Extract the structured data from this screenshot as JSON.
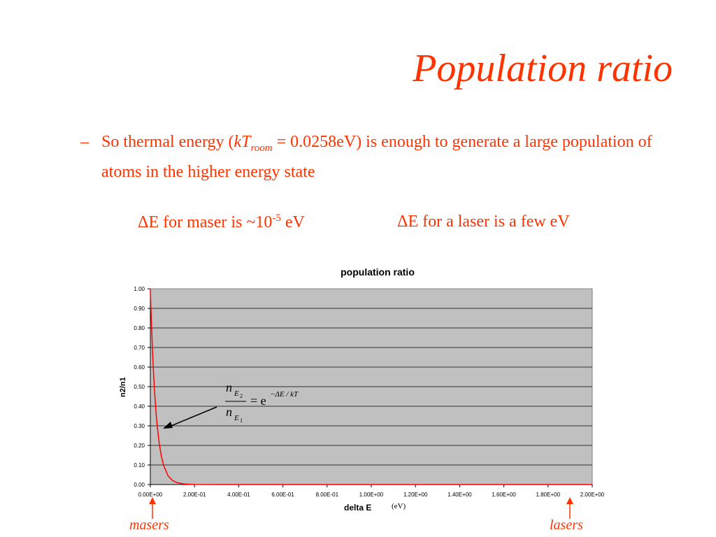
{
  "slide": {
    "title": "Population ratio",
    "bullet": {
      "dash": "–",
      "pre": "So thermal energy (",
      "kt_k": "kT",
      "kt_sub": "room",
      "kt_eq": " = 0.0258eV) is enough to generate a large population of atoms in the higher energy state"
    },
    "maser": {
      "delta": "Δ",
      "pre": "E for maser is ~10",
      "exp": "-5",
      "post": " eV"
    },
    "laser": {
      "delta": "Δ",
      "text": "E for a laser is a few eV"
    },
    "markers": {
      "left": "masers",
      "right": "lasers"
    },
    "xunit": "(eV)",
    "formula": {
      "num_n": "n",
      "num_sub": "E",
      "num_subsub": "2",
      "eq": "= e",
      "exp": "−ΔE / kT",
      "den_n": "n",
      "den_sub": "E",
      "den_subsub": "1"
    }
  },
  "colors": {
    "accent": "#ff3300",
    "plot_bg": "#c0c0c0",
    "curve": "#ff0000"
  },
  "chart_data": {
    "type": "line",
    "title": "population ratio",
    "xlabel": "delta E",
    "ylabel": "n2/n1",
    "xlim": [
      0,
      2.0
    ],
    "ylim": [
      0,
      1.0
    ],
    "x_ticks": [
      "0.00E+00",
      "2.00E-01",
      "4.00E-01",
      "6.00E-01",
      "8.00E-01",
      "1.00E+00",
      "1.20E+00",
      "1.40E+00",
      "1.60E+00",
      "1.80E+00",
      "2.00E+00"
    ],
    "y_ticks": [
      "0.00",
      "0.10",
      "0.20",
      "0.30",
      "0.40",
      "0.50",
      "0.60",
      "0.70",
      "0.80",
      "0.90",
      "1.00"
    ],
    "grid": "horizontal",
    "series": [
      {
        "x": [
          0,
          0.002,
          0.005,
          0.01,
          0.015,
          0.02,
          0.025,
          0.03,
          0.04,
          0.05,
          0.06,
          0.08,
          0.1,
          0.12,
          0.15,
          0.2,
          0.3,
          0.5,
          1.0,
          1.5,
          2.0
        ],
        "y": [
          1.0,
          0.925,
          0.824,
          0.679,
          0.559,
          0.461,
          0.38,
          0.313,
          0.212,
          0.144,
          0.098,
          0.045,
          0.021,
          0.01,
          0.003,
          0.0004,
          0.0,
          0.0,
          0.0,
          0.0,
          0.0
        ]
      }
    ]
  }
}
